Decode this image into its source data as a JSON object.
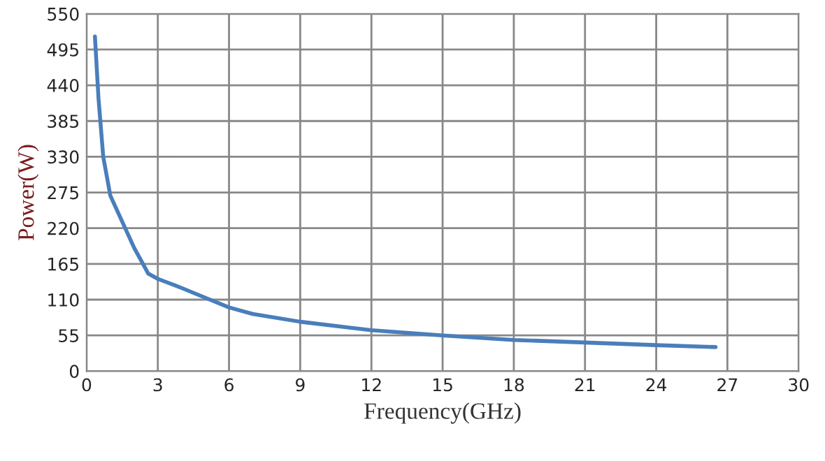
{
  "chart_data": {
    "type": "line",
    "xlabel": "Frequency(GHz)",
    "ylabel": "Power(W)",
    "x": [
      0.35,
      0.5,
      0.7,
      1.0,
      1.5,
      2.0,
      2.6,
      3,
      4,
      5,
      6,
      7,
      9,
      12,
      15,
      18,
      21,
      24,
      26.5
    ],
    "series": [
      {
        "color": "#4a7ebb",
        "values": [
          515,
          420,
          330,
          270,
          230,
          190,
          150,
          142,
          128,
          113,
          98,
          88,
          76,
          63,
          55,
          48,
          44,
          40,
          37
        ]
      }
    ],
    "xlim": [
      0,
      30
    ],
    "xticks": [
      0,
      3,
      6,
      9,
      12,
      15,
      18,
      21,
      24,
      27,
      30
    ],
    "ylim": [
      0,
      550
    ],
    "yticks": [
      0,
      55,
      110,
      165,
      220,
      275,
      330,
      385,
      440,
      495,
      550
    ],
    "grid": true,
    "marker": "none",
    "line_style": "solid"
  }
}
